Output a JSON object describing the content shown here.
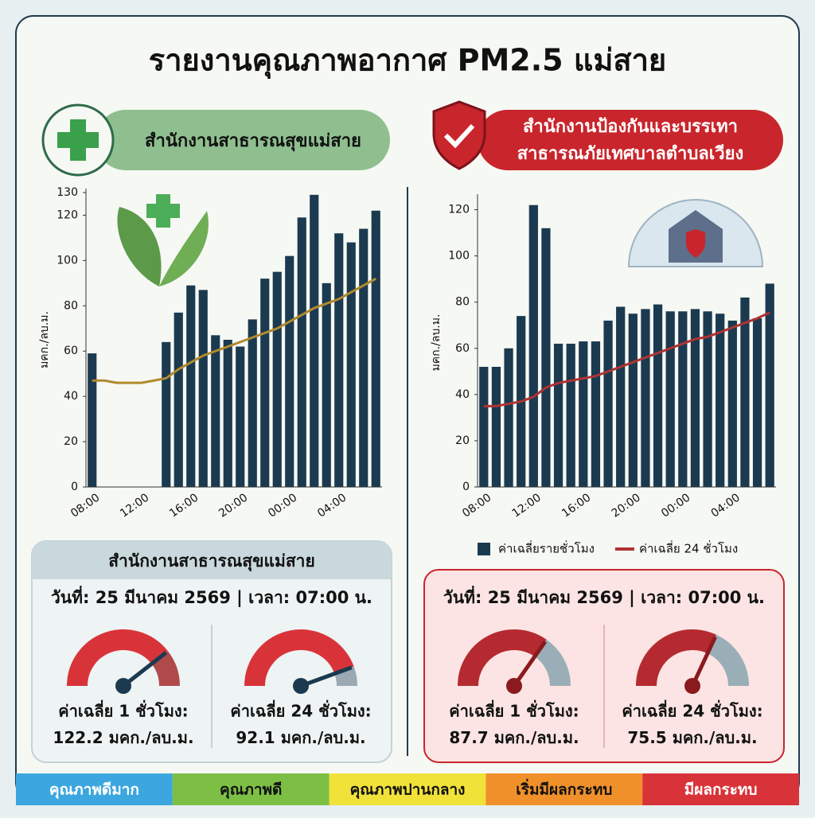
{
  "title": "รายงานคุณภาพอากาศ PM2.5 แม่สาย",
  "left": {
    "header": "สำนักงานสาธารณสุขแม่สาย",
    "card": {
      "title": "สำนักงานสาธารณสุขแม่สาย",
      "datetime": "วันที่: 25 มีนาคม 2569 | เวลา: 07:00 น.",
      "gauges": [
        {
          "label": "ค่าเฉลี่ย 1 ชั่วโมง:",
          "value": 122.2,
          "unit": "มคก./ลบ.ม."
        },
        {
          "label": "ค่าเฉลี่ย 24 ชั่วโมง:",
          "value": 92.1,
          "unit": "มคก./ลบ.ม."
        }
      ]
    }
  },
  "right": {
    "header": [
      "สำนักงานป้องกันและบรรเทา",
      "สาธารณภัยเทศบาลตำบลเวียง"
    ],
    "card": {
      "datetime": "วันที่: 25 มีนาคม 2569 | เวลา: 07:00 น.",
      "gauges": [
        {
          "label": "ค่าเฉลี่ย 1 ชั่วโมง:",
          "value": 87.7,
          "unit": "มคก./ลบ.ม."
        },
        {
          "label": "ค่าเฉลี่ย 24 ชั่วโมง:",
          "value": 75.5,
          "unit": "มคก./ลบ.ม."
        }
      ]
    }
  },
  "chart_data": [
    {
      "type": "bar",
      "y_label": "มคก./ลบ.ม.",
      "categories": [
        "08:00",
        null,
        null,
        null,
        "12:00",
        null,
        null,
        null,
        "16:00",
        null,
        null,
        null,
        "20:00",
        null,
        null,
        null,
        "00:00",
        null,
        null,
        null,
        "04:00",
        null,
        null,
        null
      ],
      "series": [
        {
          "type": "bar",
          "color": "#1b3a50",
          "values": [
            59,
            null,
            null,
            null,
            null,
            null,
            64,
            77,
            89,
            87,
            67,
            65,
            62,
            74,
            92,
            95,
            102,
            119,
            129,
            90,
            112,
            108,
            114,
            122
          ]
        },
        {
          "type": "line",
          "color": "#b08a2c",
          "values": [
            47,
            47,
            46,
            46,
            46,
            47,
            48,
            52,
            55,
            58,
            60,
            62,
            64,
            66,
            68,
            70,
            73,
            76,
            79,
            81,
            83,
            86,
            89,
            92
          ]
        }
      ],
      "ylim": [
        0,
        130
      ],
      "yticks": [
        0,
        20,
        40,
        60,
        80,
        100,
        120,
        130
      ]
    },
    {
      "type": "bar",
      "y_label": "มคก./ลบ.ม.",
      "categories": [
        "08:00",
        null,
        null,
        null,
        "12:00",
        null,
        null,
        null,
        "16:00",
        null,
        null,
        null,
        "20:00",
        null,
        null,
        null,
        "00:00",
        null,
        null,
        null,
        "04:00",
        null,
        null,
        null
      ],
      "series": [
        {
          "type": "bar",
          "name": "ค่าเฉลี่ยรายชั่วโมง",
          "color": "#1b3a50",
          "values": [
            52,
            52,
            60,
            74,
            122,
            112,
            62,
            62,
            63,
            63,
            72,
            78,
            75,
            77,
            79,
            76,
            76,
            77,
            76,
            75,
            72,
            82,
            73,
            88
          ]
        },
        {
          "type": "line",
          "name": "ค่าเฉลี่ย 24 ชั่วโมง",
          "color": "#b03232",
          "values": [
            35,
            35,
            36,
            37,
            39,
            43,
            45,
            46,
            47,
            48,
            50,
            52,
            54,
            56,
            58,
            60,
            62,
            64,
            65,
            67,
            69,
            71,
            73,
            75.5
          ]
        }
      ],
      "ylim": [
        0,
        125
      ],
      "yticks": [
        0,
        20,
        40,
        60,
        80,
        100,
        120
      ],
      "legend": "bottom"
    }
  ],
  "scale": [
    {
      "label": "คุณภาพดีมาก",
      "color": "#3ca7de"
    },
    {
      "label": "คุณภาพดี",
      "color": "#7dbf45"
    },
    {
      "label": "คุณภาพปานกลาง",
      "color": "#f1e23a"
    },
    {
      "label": "เริ่มมีผลกระทบ",
      "color": "#f0902a"
    },
    {
      "label": "มีผลกระทบ",
      "color": "#d9333a"
    }
  ]
}
